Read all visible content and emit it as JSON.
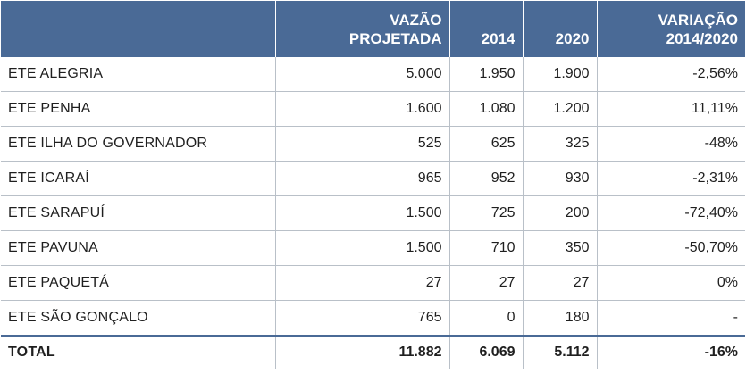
{
  "table": {
    "headers": {
      "name": "",
      "projected_line1": "VAZÃO",
      "projected_line2": "PROJETADA",
      "y2014": "2014",
      "y2020": "2020",
      "variation_line1": "VARIAÇÃO",
      "variation_line2": "2014/2020"
    },
    "rows": [
      {
        "name": "ETE ALEGRIA",
        "projected": "5.000",
        "y2014": "1.950",
        "y2020": "1.900",
        "variation": "-2,56%"
      },
      {
        "name": "ETE PENHA",
        "projected": "1.600",
        "y2014": "1.080",
        "y2020": "1.200",
        "variation": "11,11%"
      },
      {
        "name": "ETE ILHA DO GOVERNADOR",
        "projected": "525",
        "y2014": "625",
        "y2020": "325",
        "variation": "-48%"
      },
      {
        "name": "ETE ICARAÍ",
        "projected": "965",
        "y2014": "952",
        "y2020": "930",
        "variation": "-2,31%"
      },
      {
        "name": "ETE SARAPUÍ",
        "projected": "1.500",
        "y2014": "725",
        "y2020": "200",
        "variation": "-72,40%"
      },
      {
        "name": "ETE PAVUNA",
        "projected": "1.500",
        "y2014": "710",
        "y2020": "350",
        "variation": "-50,70%"
      },
      {
        "name": "ETE PAQUETÁ",
        "projected": "27",
        "y2014": "27",
        "y2020": "27",
        "variation": "0%"
      },
      {
        "name": "ETE SÃO GONÇALO",
        "projected": "765",
        "y2014": "0",
        "y2020": "180",
        "variation": "-"
      }
    ],
    "total": {
      "name": "TOTAL",
      "projected": "11.882",
      "y2014": "6.069",
      "y2020": "5.112",
      "variation": "-16%"
    }
  },
  "colors": {
    "header_bg": "#4a6a96",
    "header_text": "#ffffff",
    "grid_line": "#b9c0c8"
  }
}
